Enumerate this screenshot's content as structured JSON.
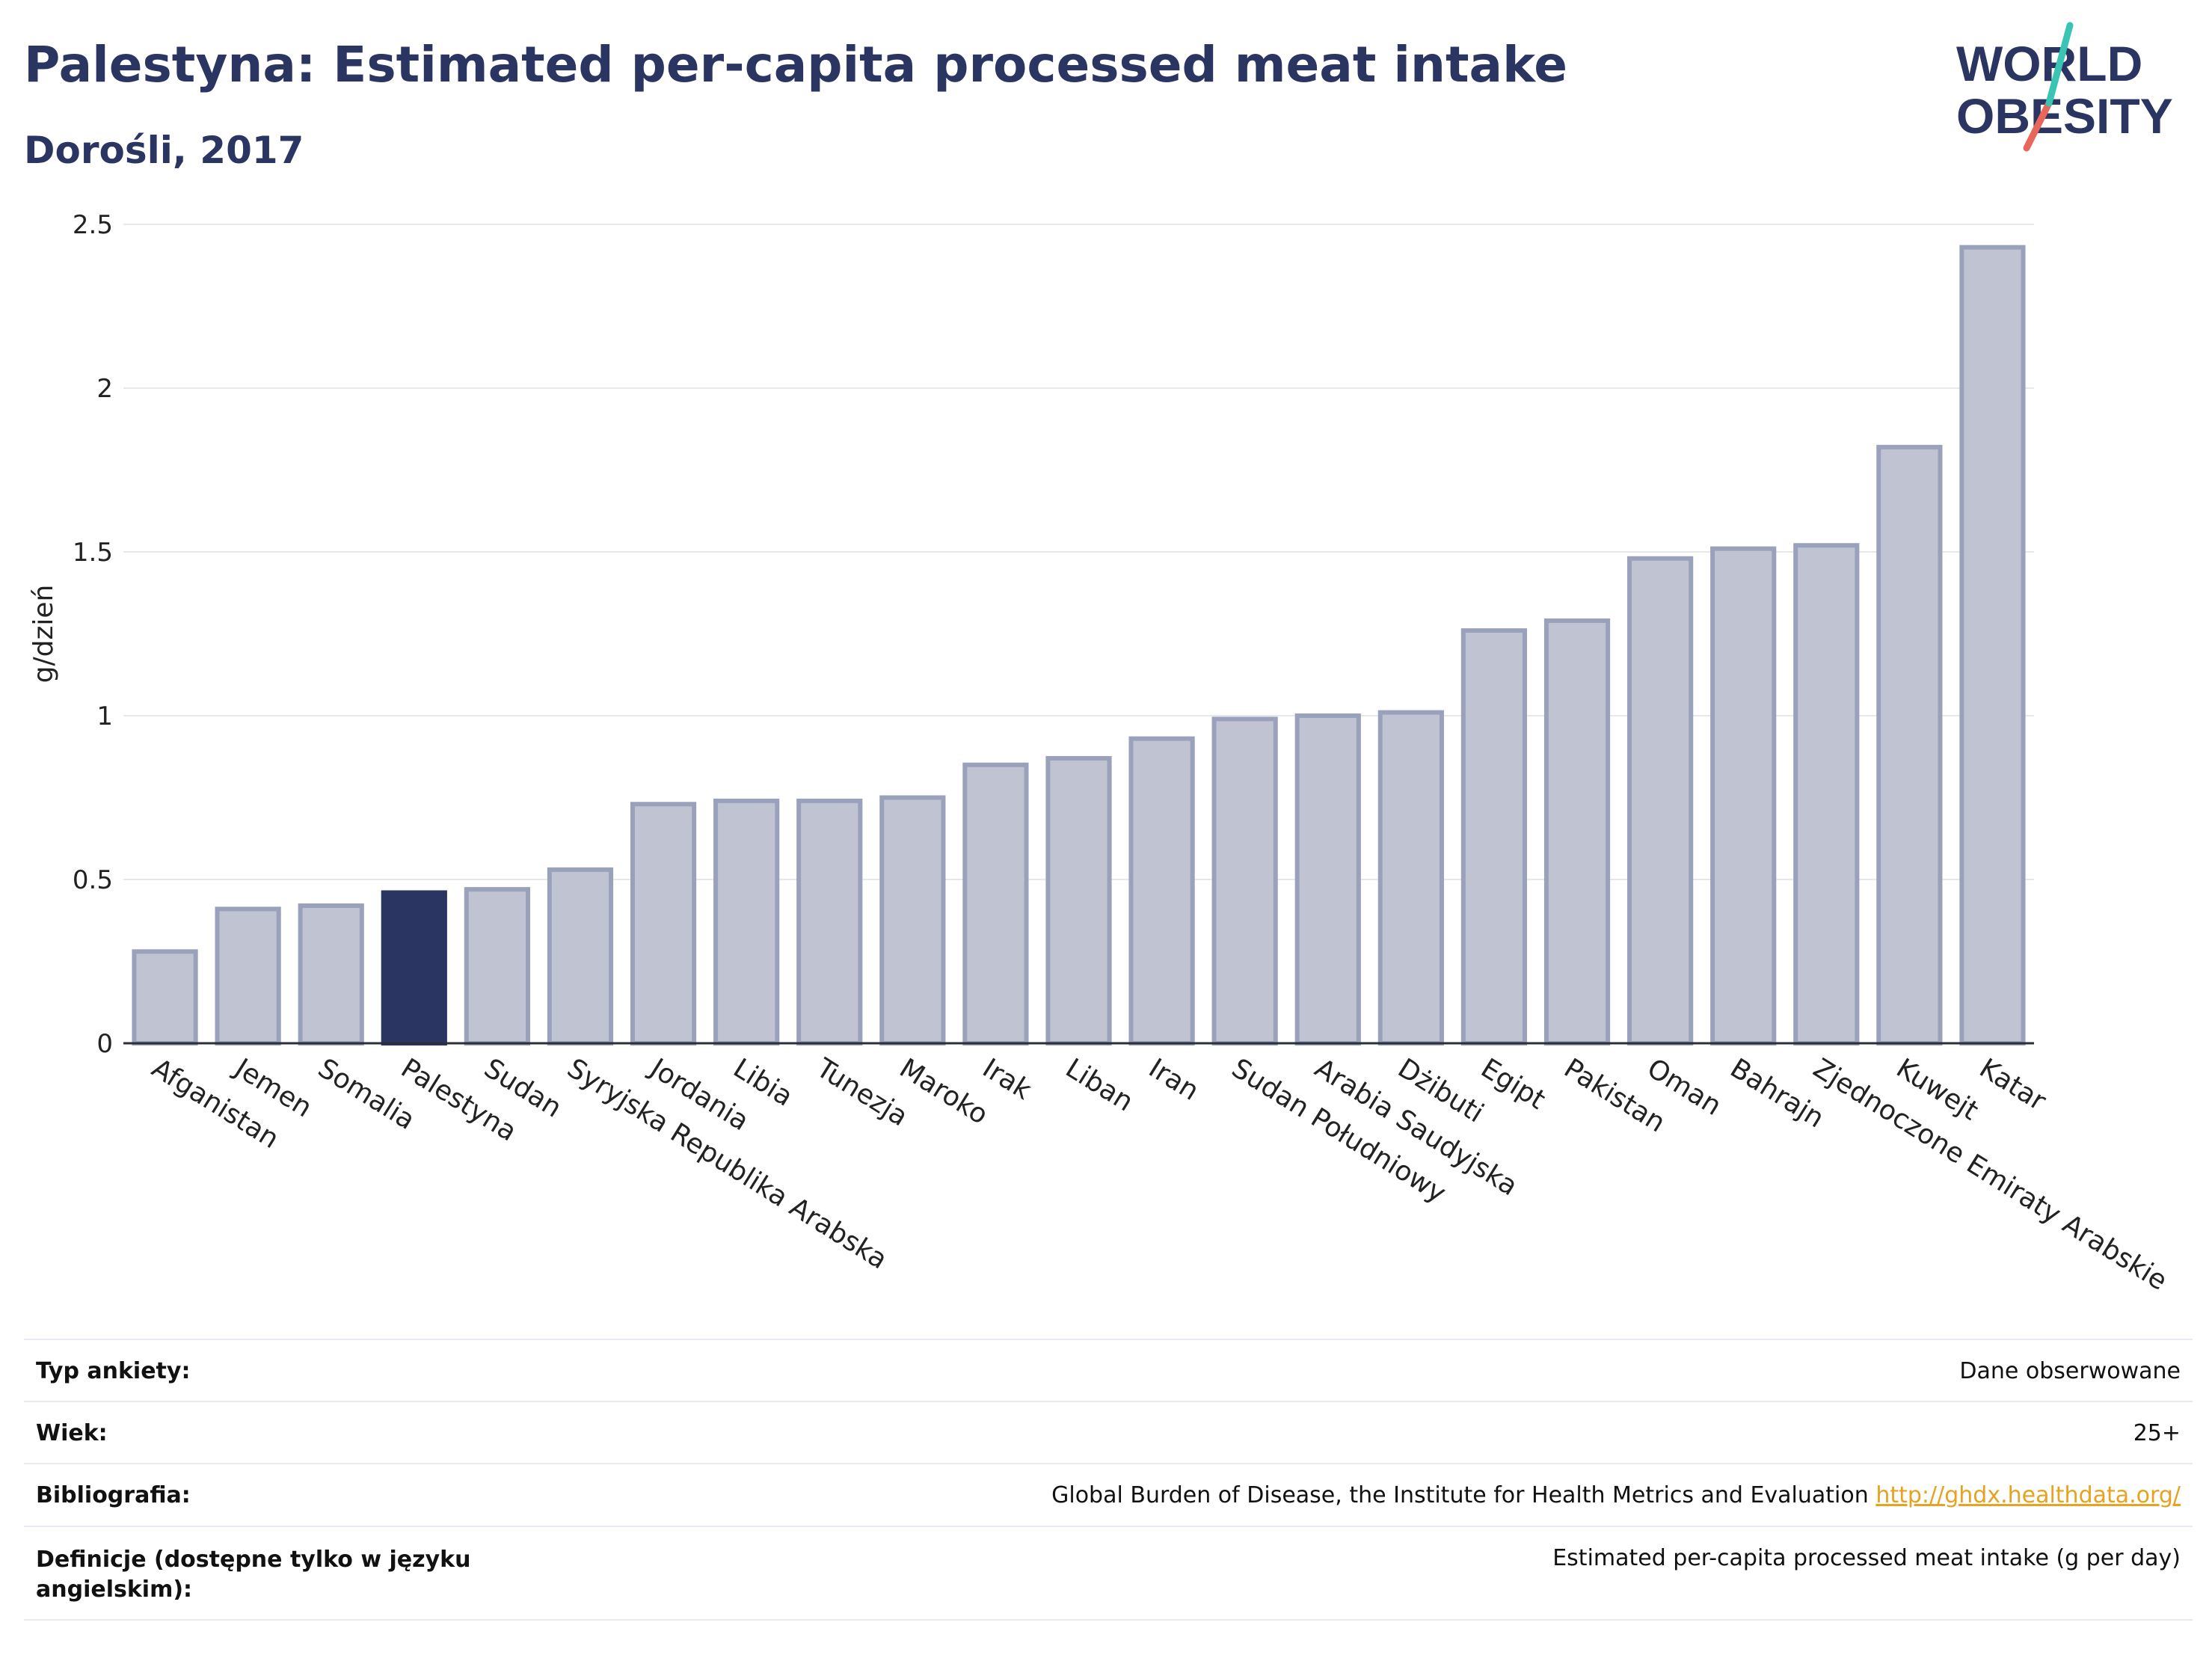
{
  "header": {
    "title": "Palestyna: Estimated per-capita processed meat intake",
    "subtitle": "Dorośli, 2017",
    "logo_text_line1": "WORLD",
    "logo_text_line2": "OBESITY"
  },
  "colors": {
    "highlight": "#2b3561",
    "bar": "#c0c4d2",
    "bar_stroke": "#9aa1bb",
    "grid": "#e6e8ee",
    "axis": "#2b2f3a",
    "link": "#e7a21f"
  },
  "chart_data": {
    "type": "bar",
    "ylabel": "g/dzień",
    "ylim": [
      0,
      2.5
    ],
    "yticks": [
      0,
      0.5,
      1,
      1.5,
      2,
      2.5
    ],
    "ytick_labels": [
      "0",
      "0.5",
      "1",
      "1.5",
      "2",
      "2.5"
    ],
    "highlight": "Palestyna",
    "grid": true,
    "categories": [
      "Afganistan",
      "Jemen",
      "Somalia",
      "Palestyna",
      "Sudan",
      "Syryjska Republika Arabska",
      "Jordania",
      "Libia",
      "Tunezja",
      "Maroko",
      "Irak",
      "Liban",
      "Iran",
      "Sudan Południowy",
      "Arabia Saudyjska",
      "Dżibuti",
      "Egipt",
      "Pakistan",
      "Oman",
      "Bahrajn",
      "Zjednoczone Emiraty Arabskie",
      "Kuwejt",
      "Katar"
    ],
    "values": [
      0.28,
      0.41,
      0.42,
      0.46,
      0.47,
      0.53,
      0.73,
      0.74,
      0.74,
      0.75,
      0.85,
      0.87,
      0.93,
      0.99,
      1.0,
      1.01,
      1.26,
      1.29,
      1.48,
      1.51,
      1.52,
      1.82,
      2.43
    ]
  },
  "meta": {
    "rows": [
      {
        "label": "Typ ankiety:",
        "value": "Dane obserwowane"
      },
      {
        "label": "Wiek:",
        "value": "25+"
      },
      {
        "label": "Bibliografia:",
        "value": "Global Burden of Disease, the Institute for Health Metrics and Evaluation",
        "link": "http://ghdx.healthdata.org/"
      },
      {
        "label": "Definicje (dostępne tylko w języku angielskim):",
        "value": "Estimated per-capita processed meat intake (g per day)"
      }
    ]
  }
}
